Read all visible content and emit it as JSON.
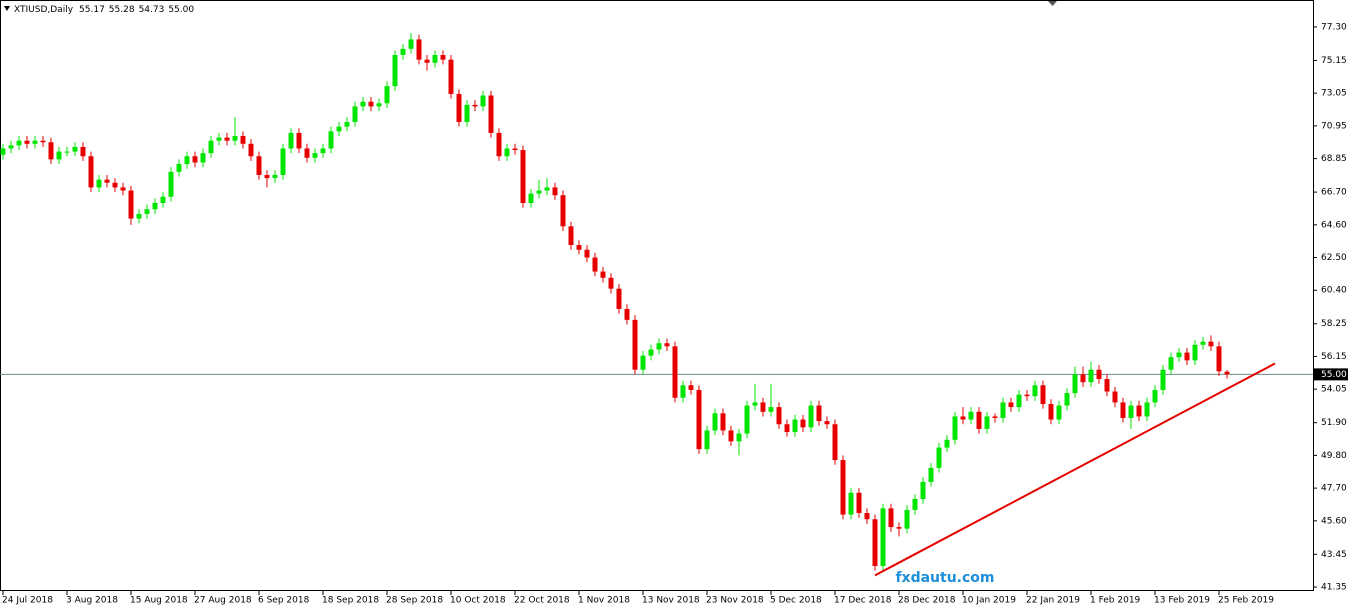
{
  "chart_data": {
    "type": "candlestick",
    "symbol": "XTIUSD,Daily",
    "ohlc_text": [
      "55.17",
      "55.28",
      "54.73",
      "55.00"
    ],
    "watermark": "fxdautu.com",
    "categories": [
      "24 Jul 2018",
      null,
      null,
      null,
      null,
      null,
      null,
      null,
      "3 Aug 2018",
      null,
      null,
      null,
      null,
      null,
      null,
      null,
      "15 Aug 2018",
      null,
      null,
      null,
      null,
      null,
      null,
      null,
      "27 Aug 2018",
      null,
      null,
      null,
      null,
      null,
      null,
      null,
      "6 Sep 2018",
      null,
      null,
      null,
      null,
      null,
      null,
      null,
      "18 Sep 2018",
      null,
      null,
      null,
      null,
      null,
      null,
      null,
      "28 Sep 2018",
      null,
      null,
      null,
      null,
      null,
      null,
      null,
      "10 Oct 2018",
      null,
      null,
      null,
      null,
      null,
      null,
      null,
      "22 Oct 2018",
      null,
      null,
      null,
      null,
      null,
      null,
      null,
      "1 Nov 2018",
      null,
      null,
      null,
      null,
      null,
      null,
      null,
      "13 Nov 2018",
      null,
      null,
      null,
      null,
      null,
      null,
      null,
      "23 Nov 2018",
      null,
      null,
      null,
      null,
      null,
      null,
      null,
      "5 Dec 2018",
      null,
      null,
      null,
      null,
      null,
      null,
      null,
      "17 Dec 2018",
      null,
      null,
      null,
      null,
      null,
      null,
      null,
      "28 Dec 2018",
      null,
      null,
      null,
      null,
      null,
      null,
      null,
      "10 Jan 2019",
      null,
      null,
      null,
      null,
      null,
      null,
      null,
      "22 Jan 2019",
      null,
      null,
      null,
      null,
      null,
      null,
      null,
      "1 Feb 2019",
      null,
      null,
      null,
      null,
      null,
      null,
      null,
      "13 Feb 2019",
      null,
      null,
      null,
      null,
      null,
      null,
      null,
      "25 Feb 2019",
      null
    ],
    "open": [
      69.1,
      69.5,
      69.7,
      70.0,
      69.8,
      70.0,
      69.9,
      68.8,
      69.3,
      69.3,
      69.6,
      69.0,
      67.0,
      67.5,
      67.3,
      67.0,
      66.8,
      65.0,
      65.3,
      65.6,
      66.0,
      66.4,
      68.0,
      68.5,
      69.0,
      68.6,
      69.2,
      70.0,
      70.2,
      70.0,
      70.3,
      69.8,
      69.0,
      67.8,
      67.6,
      67.8,
      69.5,
      70.5,
      69.5,
      68.9,
      69.2,
      69.5,
      70.6,
      70.9,
      71.2,
      72.2,
      72.5,
      72.2,
      72.4,
      73.5,
      75.5,
      75.9,
      76.5,
      75.2,
      75.0,
      75.5,
      75.2,
      73.0,
      71.2,
      72.3,
      72.2,
      72.9,
      70.5,
      69.0,
      69.5,
      69.4,
      66.0,
      66.6,
      66.8,
      67.0,
      66.5,
      64.5,
      63.3,
      63.0,
      62.5,
      61.6,
      61.2,
      60.5,
      59.2,
      58.5,
      55.3,
      56.2,
      56.6,
      57.0,
      56.8,
      53.5,
      54.3,
      54.0,
      50.2,
      51.4,
      52.5,
      51.4,
      50.7,
      51.2,
      53.0,
      53.2,
      52.6,
      52.9,
      51.8,
      51.3,
      52.1,
      51.6,
      53.0,
      52.0,
      51.8,
      49.5,
      46.0,
      47.4,
      46.1,
      45.7,
      42.7,
      46.4,
      45.2,
      45.1,
      46.3,
      47.0,
      48.1,
      49.0,
      50.3,
      50.8,
      52.3,
      52.1,
      52.6,
      51.5,
      52.3,
      52.2,
      53.2,
      52.9,
      53.7,
      53.6,
      54.3,
      53.1,
      52.1,
      53.0,
      53.8,
      55.0,
      54.5,
      55.3,
      54.7,
      53.9,
      53.2,
      52.2,
      53.0,
      52.3,
      53.2,
      54.0,
      55.3,
      56.1,
      56.4,
      55.9,
      56.9,
      57.1,
      56.8,
      55.17
    ],
    "high": [
      69.8,
      70.0,
      70.3,
      70.3,
      70.3,
      70.3,
      70.2,
      69.6,
      69.6,
      69.9,
      69.9,
      69.3,
      67.8,
      67.8,
      67.6,
      67.3,
      67.1,
      65.6,
      65.9,
      66.3,
      66.7,
      68.3,
      68.8,
      69.3,
      69.3,
      69.5,
      70.3,
      70.5,
      70.5,
      71.5,
      70.6,
      70.1,
      69.3,
      68.1,
      68.1,
      69.8,
      70.8,
      70.8,
      69.8,
      69.5,
      69.8,
      70.9,
      71.2,
      71.5,
      72.5,
      72.8,
      72.8,
      72.7,
      73.8,
      75.8,
      76.2,
      76.9,
      76.8,
      75.5,
      75.8,
      75.8,
      75.5,
      73.3,
      72.6,
      72.6,
      73.2,
      73.2,
      70.8,
      69.8,
      69.8,
      69.7,
      66.9,
      67.5,
      67.6,
      67.3,
      66.8,
      64.8,
      63.6,
      63.3,
      62.8,
      61.9,
      61.5,
      60.8,
      59.5,
      58.8,
      56.5,
      56.9,
      57.3,
      57.3,
      57.1,
      54.6,
      54.6,
      54.3,
      51.7,
      52.8,
      52.8,
      51.7,
      51.5,
      53.3,
      54.4,
      53.5,
      54.4,
      53.2,
      52.1,
      52.4,
      52.4,
      53.3,
      53.3,
      52.3,
      52.1,
      49.8,
      47.7,
      47.7,
      46.4,
      46.0,
      46.7,
      46.7,
      45.5,
      46.6,
      47.3,
      48.4,
      49.3,
      50.6,
      51.1,
      52.6,
      52.9,
      52.9,
      52.9,
      52.6,
      52.5,
      53.5,
      53.5,
      54.0,
      54.0,
      54.6,
      54.6,
      53.4,
      53.3,
      54.1,
      55.5,
      55.5,
      55.8,
      55.6,
      55.0,
      54.2,
      53.5,
      53.3,
      53.3,
      53.5,
      54.3,
      55.6,
      56.4,
      56.7,
      56.7,
      57.2,
      57.4,
      57.5,
      57.1,
      55.28
    ],
    "low": [
      68.8,
      69.2,
      69.4,
      69.5,
      69.5,
      69.6,
      68.5,
      68.5,
      69.0,
      69.0,
      68.7,
      66.7,
      66.7,
      67.0,
      66.7,
      66.5,
      64.6,
      64.7,
      65.0,
      65.3,
      65.7,
      66.1,
      67.7,
      68.2,
      68.3,
      68.3,
      68.9,
      69.7,
      69.7,
      69.7,
      69.5,
      68.7,
      67.5,
      67.0,
      67.3,
      67.5,
      69.2,
      69.2,
      68.6,
      68.6,
      68.9,
      69.2,
      70.3,
      70.6,
      70.9,
      71.9,
      71.9,
      71.9,
      72.1,
      73.2,
      75.2,
      75.6,
      74.9,
      74.5,
      74.7,
      74.9,
      72.7,
      70.9,
      70.9,
      71.9,
      71.9,
      70.2,
      68.7,
      68.7,
      69.1,
      65.7,
      65.7,
      66.3,
      66.5,
      66.2,
      64.2,
      63.0,
      62.7,
      62.2,
      61.3,
      60.9,
      60.2,
      58.9,
      58.2,
      55.0,
      55.0,
      55.9,
      56.3,
      56.5,
      53.2,
      53.2,
      53.7,
      49.9,
      49.9,
      51.1,
      51.1,
      50.4,
      49.8,
      50.9,
      52.7,
      52.3,
      52.3,
      51.5,
      51.0,
      51.0,
      51.3,
      51.3,
      51.7,
      51.5,
      49.2,
      45.7,
      45.7,
      45.8,
      45.4,
      42.4,
      42.4,
      44.9,
      44.6,
      44.8,
      46.0,
      46.7,
      47.8,
      48.7,
      50.0,
      50.5,
      51.8,
      51.8,
      51.2,
      51.2,
      51.9,
      51.9,
      52.6,
      52.6,
      53.3,
      53.3,
      52.8,
      51.8,
      51.8,
      52.7,
      53.5,
      54.2,
      54.2,
      54.4,
      53.6,
      52.9,
      51.9,
      51.5,
      52.0,
      52.0,
      52.9,
      53.7,
      55.0,
      55.8,
      55.6,
      55.6,
      56.6,
      56.5,
      54.9,
      54.73
    ],
    "close": [
      69.5,
      69.7,
      70.0,
      69.8,
      70.0,
      69.9,
      68.8,
      69.3,
      69.3,
      69.6,
      69.0,
      67.0,
      67.5,
      67.3,
      67.0,
      66.8,
      65.0,
      65.3,
      65.6,
      66.0,
      66.4,
      68.0,
      68.5,
      69.0,
      68.6,
      69.2,
      70.0,
      70.2,
      70.0,
      70.3,
      69.8,
      69.0,
      67.8,
      67.6,
      67.8,
      69.5,
      70.5,
      69.5,
      68.9,
      69.2,
      69.5,
      70.6,
      70.9,
      71.2,
      72.2,
      72.5,
      72.2,
      72.4,
      73.5,
      75.5,
      75.9,
      76.5,
      75.2,
      75.0,
      75.5,
      75.2,
      73.0,
      71.2,
      72.3,
      72.2,
      72.9,
      70.5,
      69.0,
      69.5,
      69.4,
      66.0,
      66.6,
      66.8,
      67.0,
      66.5,
      64.5,
      63.3,
      63.0,
      62.5,
      61.6,
      61.2,
      60.5,
      59.2,
      58.5,
      55.3,
      56.2,
      56.6,
      57.0,
      56.8,
      53.5,
      54.3,
      54.0,
      50.2,
      51.4,
      52.5,
      51.4,
      50.7,
      51.2,
      53.0,
      53.2,
      52.6,
      52.9,
      51.8,
      51.3,
      52.1,
      51.6,
      53.0,
      52.0,
      51.8,
      49.5,
      46.0,
      47.4,
      46.1,
      45.7,
      42.7,
      46.4,
      45.2,
      45.1,
      46.3,
      47.0,
      48.1,
      49.0,
      50.3,
      50.8,
      52.3,
      52.1,
      52.6,
      51.5,
      52.3,
      52.2,
      53.2,
      52.9,
      53.7,
      53.6,
      54.3,
      53.1,
      52.1,
      53.0,
      53.8,
      55.0,
      54.5,
      55.3,
      54.7,
      53.9,
      53.2,
      52.2,
      53.0,
      52.3,
      53.2,
      54.0,
      55.3,
      56.1,
      56.4,
      55.9,
      56.9,
      57.1,
      56.8,
      55.2,
      55.0
    ],
    "up_color": "#00e600",
    "down_color": "#e60000",
    "ylim": [
      41.16,
      79.03
    ],
    "yticks": [
      {
        "value": 77.3,
        "label": "77.30"
      },
      75.15,
      73.05,
      70.95,
      68.85,
      {
        "value": 66.7,
        "label": "66.70"
      },
      {
        "value": 64.6,
        "label": "64.60"
      },
      {
        "value": 62.5,
        "label": "62.50"
      },
      {
        "value": 60.4,
        "label": "60.40"
      },
      58.25,
      56.15,
      54.05,
      {
        "value": 51.9,
        "label": "51.90"
      },
      {
        "value": 49.8,
        "label": "49.80"
      },
      {
        "value": 47.7,
        "label": "47.70"
      },
      {
        "value": 45.6,
        "label": "45.60"
      },
      43.45,
      41.35
    ],
    "grid": false,
    "current_price": {
      "value": 55,
      "label": "55.00"
    },
    "trendline": {
      "x": [
        109,
        159
      ],
      "y": [
        42.1,
        55.7
      ],
      "color": "#e60000"
    }
  }
}
